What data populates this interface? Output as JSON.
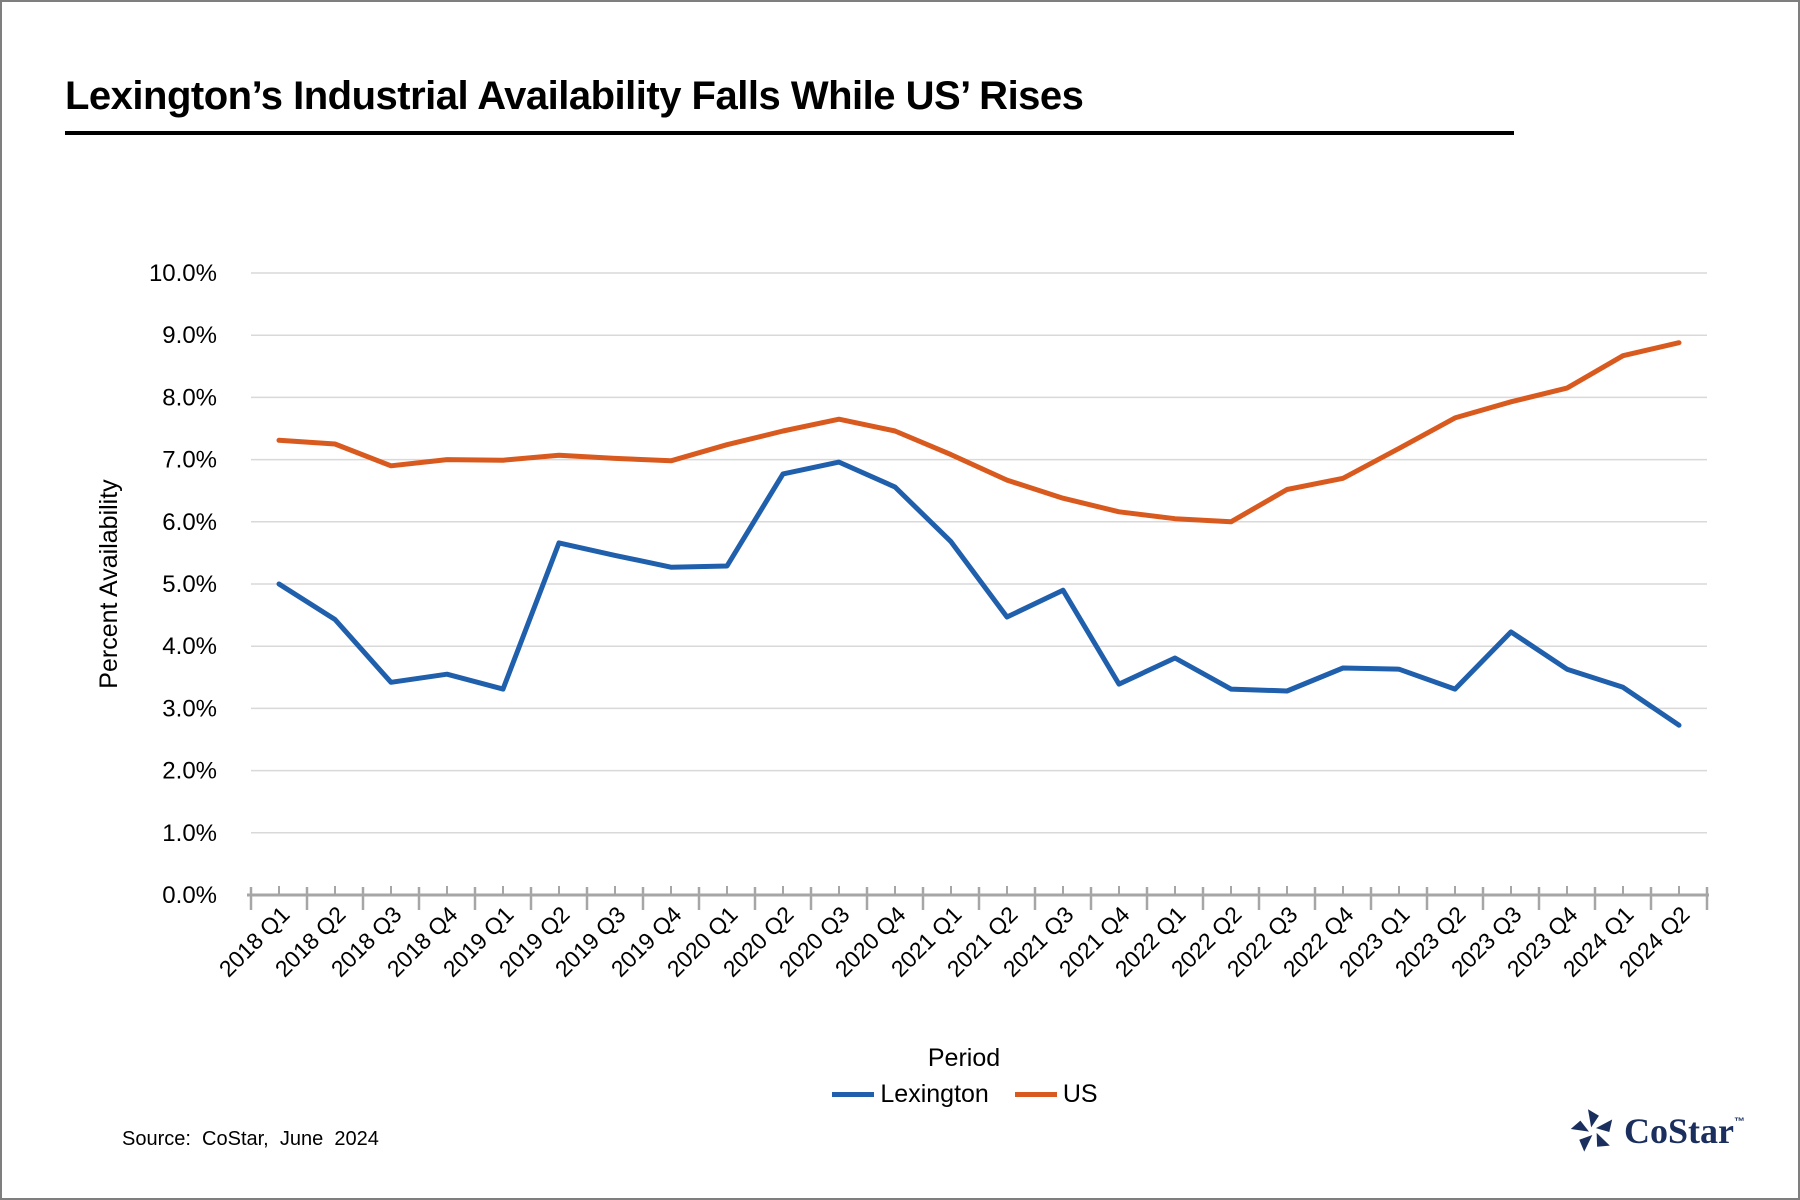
{
  "window": {
    "background": "#ffffff",
    "border_color": "#7f7f7f"
  },
  "title": "Lexington’s Industrial Availability Falls While US’ Rises",
  "source_note": "Source:  CoStar,  June  2024",
  "logo": {
    "name": "costar-logo",
    "text": "CoStar",
    "trademark": "™",
    "color": "#1b2f5e"
  },
  "chart_data": {
    "type": "line",
    "title": "Lexington’s Industrial Availability Falls While US’ Rises",
    "xlabel": "Period",
    "ylabel": "Percent Availability",
    "ylim": [
      0,
      10
    ],
    "ytick_step": 1.0,
    "ytick_labels": [
      "0.0%",
      "1.0%",
      "2.0%",
      "3.0%",
      "4.0%",
      "5.0%",
      "6.0%",
      "7.0%",
      "8.0%",
      "9.0%",
      "10.0%"
    ],
    "grid": true,
    "gridline_color": "#d9d9d9",
    "axis_color": "#a6a6a6",
    "legend_position": "bottom",
    "categories": [
      "2018 Q1",
      "2018 Q2",
      "2018 Q3",
      "2018 Q4",
      "2019 Q1",
      "2019 Q2",
      "2019 Q3",
      "2019 Q4",
      "2020 Q1",
      "2020 Q2",
      "2020 Q3",
      "2020 Q4",
      "2021 Q1",
      "2021 Q2",
      "2021 Q3",
      "2021 Q4",
      "2022 Q1",
      "2022 Q2",
      "2022 Q3",
      "2022 Q4",
      "2023 Q1",
      "2023 Q2",
      "2023 Q3",
      "2023 Q4",
      "2024 Q1",
      "2024 Q2"
    ],
    "series": [
      {
        "name": "Lexington",
        "color": "#1f5fac",
        "values": [
          5.0,
          4.43,
          3.42,
          3.55,
          3.31,
          5.66,
          5.46,
          5.27,
          5.29,
          6.77,
          6.96,
          6.56,
          5.68,
          4.47,
          4.9,
          3.39,
          3.81,
          3.31,
          3.28,
          3.65,
          3.63,
          3.31,
          4.23,
          3.63,
          3.34,
          2.73
        ]
      },
      {
        "name": "US",
        "color": "#d95a1e",
        "values": [
          7.31,
          7.25,
          6.9,
          7.0,
          6.99,
          7.07,
          7.02,
          6.98,
          7.24,
          7.46,
          7.65,
          7.46,
          7.08,
          6.67,
          6.38,
          6.16,
          6.05,
          6.0,
          6.52,
          6.7,
          7.18,
          7.67,
          7.93,
          8.15,
          8.67,
          8.88
        ]
      }
    ]
  }
}
